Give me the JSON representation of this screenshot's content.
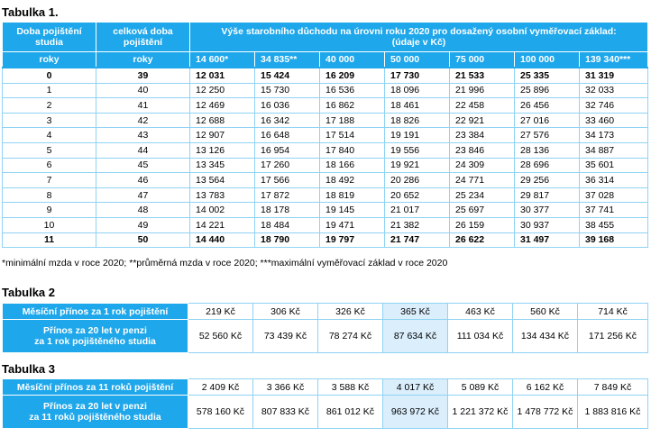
{
  "table1": {
    "caption": "Tabulka 1.",
    "header": {
      "col1": [
        "Doba pojištění",
        "studia"
      ],
      "col2": [
        "celková doba",
        "pojištění"
      ],
      "span": [
        "Výše starobního důchodu na úrovni roku 2020 pro dosažený osobní vyměřovací základ:",
        "(údaje v Kč)"
      ],
      "unit1": "roky",
      "unit2": "roky",
      "bases": [
        "14 600*",
        "34 835**",
        "40 000",
        "50 000",
        "75 000",
        "100 000",
        "139 340***"
      ]
    },
    "rows": [
      [
        "0",
        "39",
        "12 031",
        "15 424",
        "16 209",
        "17 730",
        "21 533",
        "25 335",
        "31 319"
      ],
      [
        "1",
        "40",
        "12 250",
        "15 730",
        "16 536",
        "18 096",
        "21 996",
        "25 896",
        "32 033"
      ],
      [
        "2",
        "41",
        "12 469",
        "16 036",
        "16 862",
        "18 461",
        "22 458",
        "26 456",
        "32 746"
      ],
      [
        "3",
        "42",
        "12 688",
        "16 342",
        "17 188",
        "18 826",
        "22 921",
        "27 016",
        "33 460"
      ],
      [
        "4",
        "43",
        "12 907",
        "16 648",
        "17 514",
        "19 191",
        "23 384",
        "27 576",
        "34 173"
      ],
      [
        "5",
        "44",
        "13 126",
        "16 954",
        "17 840",
        "19 556",
        "23 846",
        "28 136",
        "34 887"
      ],
      [
        "6",
        "45",
        "13 345",
        "17 260",
        "18 166",
        "19 921",
        "24 309",
        "28 696",
        "35 601"
      ],
      [
        "7",
        "46",
        "13 564",
        "17 566",
        "18 492",
        "20 286",
        "24 771",
        "29 256",
        "36 314"
      ],
      [
        "8",
        "47",
        "13 783",
        "17 872",
        "18 819",
        "20 652",
        "25 234",
        "29 817",
        "37 028"
      ],
      [
        "9",
        "48",
        "14 002",
        "18 178",
        "19 145",
        "21 017",
        "25 697",
        "30 377",
        "37 741"
      ],
      [
        "10",
        "49",
        "14 221",
        "18 484",
        "19 471",
        "21 382",
        "26 159",
        "30 937",
        "38 455"
      ],
      [
        "11",
        "50",
        "14 440",
        "18 790",
        "19 797",
        "21 747",
        "26 622",
        "31 497",
        "39 168"
      ]
    ],
    "footnote": "*minimální mzda v roce 2020; **průměrná mzda v roce 2020; ***maximální vyměřovací základ v roce 2020"
  },
  "table2": {
    "caption": "Tabulka 2",
    "row1_label": "Měsíční přínos za 1 rok pojištění",
    "row1": [
      "219 Kč",
      "306 Kč",
      "326 Kč",
      "365 Kč",
      "463 Kč",
      "560 Kč",
      "714 Kč"
    ],
    "row2_label": [
      "Přínos za 20 let v penzi",
      "za 1 rok pojištěného studia"
    ],
    "row2": [
      "52 560 Kč",
      "73 439 Kč",
      "78 274 Kč",
      "87 634 Kč",
      "111 034 Kč",
      "134 434 Kč",
      "171 256 Kč"
    ]
  },
  "table3": {
    "caption": "Tabulka 3",
    "row1_label": "Měsíční přínos za 11 roků pojištění",
    "row1": [
      "2 409 Kč",
      "3 366 Kč",
      "3 588 Kč",
      "4 017 Kč",
      "5 089 Kč",
      "6 162 Kč",
      "7 849 Kč"
    ],
    "row2_label": [
      "Přínos za 20 let v penzi",
      "za 11 roků pojištěného studia"
    ],
    "row2": [
      "578 160 Kč",
      "807 833 Kč",
      "861 012 Kč",
      "963 972 Kč",
      "1 221 372 Kč",
      "1 478 772 Kč",
      "1 883 816 Kč"
    ]
  },
  "colors": {
    "header_blue": "#1ea7ea",
    "border_blue": "#8fd3f4",
    "highlight": "#dbeefc"
  }
}
